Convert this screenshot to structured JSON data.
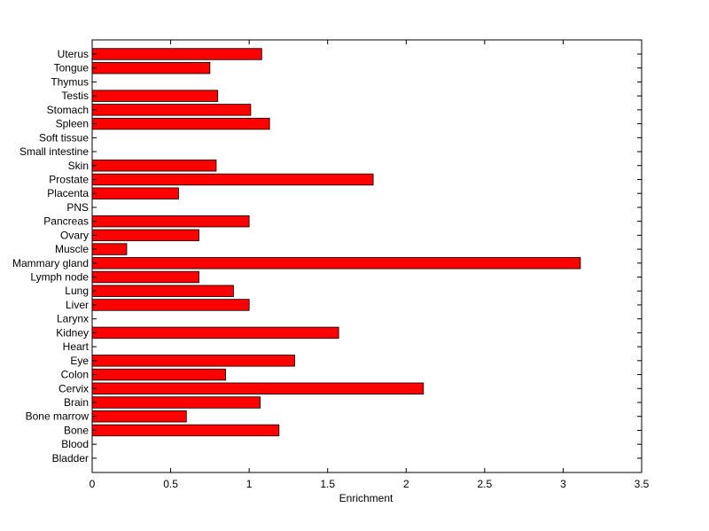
{
  "chart_data": {
    "type": "bar",
    "orientation": "horizontal",
    "categories": [
      "Uterus",
      "Tongue",
      "Thymus",
      "Testis",
      "Stomach",
      "Spleen",
      "Soft tissue",
      "Small intestine",
      "Skin",
      "Prostate",
      "Placenta",
      "PNS",
      "Pancreas",
      "Ovary",
      "Muscle",
      "Mammary gland",
      "Lymph node",
      "Lung",
      "Liver",
      "Larynx",
      "Kidney",
      "Heart",
      "Eye",
      "Colon",
      "Cervix",
      "Brain",
      "Bone marrow",
      "Bone",
      "Blood",
      "Bladder"
    ],
    "values": [
      1.08,
      0.75,
      0,
      0.8,
      1.01,
      1.13,
      0,
      0,
      0.79,
      1.79,
      0.55,
      0,
      1.0,
      0.68,
      0.22,
      3.11,
      0.68,
      0.9,
      1.0,
      0,
      1.57,
      0,
      1.29,
      0.85,
      2.11,
      1.07,
      0.6,
      1.19,
      0,
      0
    ],
    "xlabel": "Enrichment",
    "ylabel": "",
    "title": "",
    "xlim": [
      0,
      3.5
    ],
    "xticks": [
      0,
      0.5,
      1,
      1.5,
      2,
      2.5,
      3,
      3.5
    ],
    "xtick_labels": [
      "0",
      "0.5",
      "1",
      "1.5",
      "2",
      "2.5",
      "3",
      "3.5"
    ],
    "grid": false,
    "bar_color": "#ff0000",
    "edge_color": "#000000"
  }
}
